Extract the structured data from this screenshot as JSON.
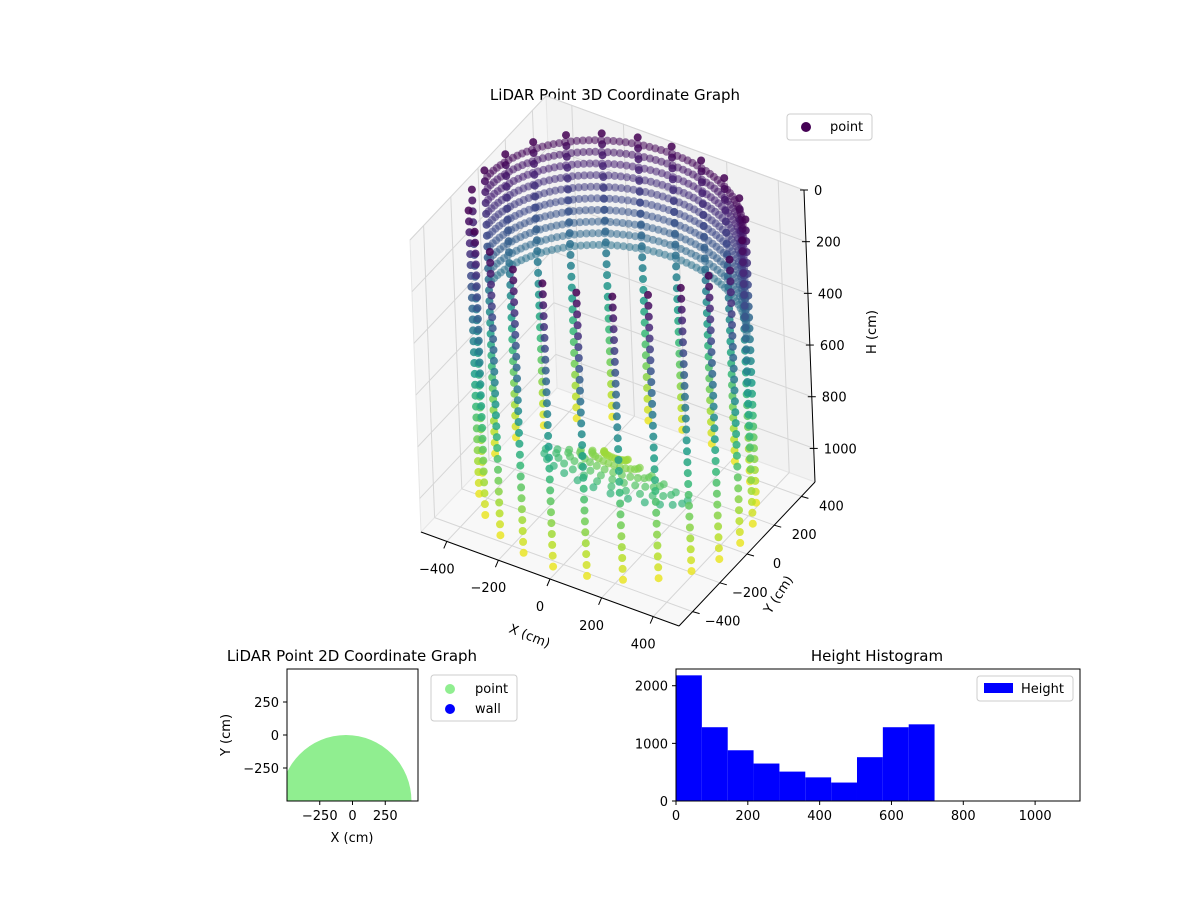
{
  "chart_data": [
    {
      "type": "scatter3d",
      "title": "LiDAR Point 3D Coordinate Graph",
      "xlabel": "X (cm)",
      "ylabel": "Y (cm)",
      "zlabel": "H (cm)",
      "xticks": [
        -400,
        -200,
        0,
        200,
        400
      ],
      "yticks": [
        400,
        200,
        0,
        -200,
        -400
      ],
      "zticks": [
        0,
        200,
        400,
        600,
        800,
        1000
      ],
      "xlim": [
        -500,
        500
      ],
      "ylim": [
        -500,
        500
      ],
      "zlim": [
        0,
        1130
      ],
      "z_inverted": true,
      "colormap": "viridis",
      "legend": {
        "entries": [
          "point"
        ],
        "placement": "upper-right",
        "colors": [
          "#440154"
        ]
      },
      "structure": {
        "wall_radius": 500,
        "wall_angle_count": 24,
        "wall_z_range": [
          0,
          1130
        ],
        "floor_patch": "half-disc",
        "grid": true
      }
    },
    {
      "type": "scatter",
      "title": "LiDAR Point 2D Coordinate Graph",
      "xlabel": "X (cm)",
      "ylabel": "Y (cm)",
      "xticks": [
        -250,
        0,
        250
      ],
      "yticks": [
        250,
        0,
        -250
      ],
      "xlim": [
        -500,
        500
      ],
      "ylim": [
        -500,
        500
      ],
      "series": [
        {
          "name": "point",
          "color": "#90ee90",
          "shape": "half-disc",
          "radius": 500,
          "center": [
            -50,
            -500
          ]
        },
        {
          "name": "wall",
          "color": "#0000ff",
          "values": []
        }
      ],
      "legend": {
        "placement": "outside-right"
      }
    },
    {
      "type": "bar",
      "title": "Height Histogram",
      "xlabel": "",
      "ylabel": "",
      "bin_edges": [
        0,
        72,
        144,
        216,
        288,
        360,
        432,
        504,
        576,
        648,
        720
      ],
      "values": [
        2180,
        1280,
        880,
        650,
        510,
        410,
        320,
        760,
        1280,
        1330
      ],
      "xticks": [
        0,
        200,
        400,
        600,
        800,
        1000
      ],
      "yticks": [
        0,
        1000,
        2000
      ],
      "xlim": [
        0,
        1125
      ],
      "ylim": [
        0,
        2290
      ],
      "color": "#0000ff",
      "legend": {
        "entries": [
          "Height"
        ],
        "placement": "upper-right"
      }
    }
  ]
}
